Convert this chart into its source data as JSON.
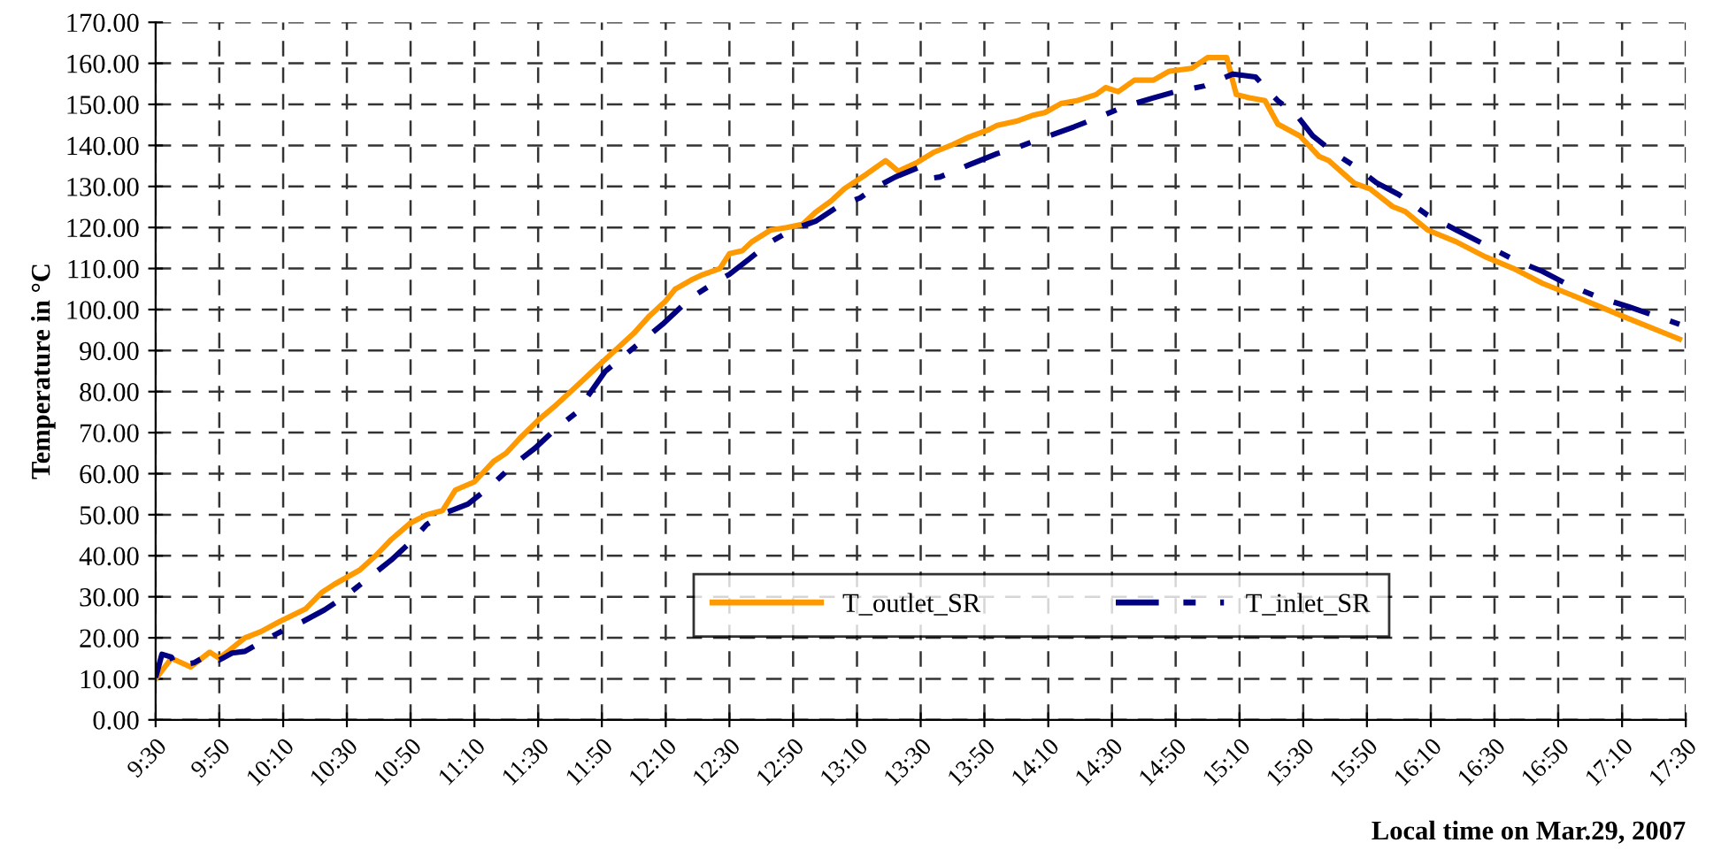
{
  "chart_data": {
    "type": "line",
    "xlabel": "Local time on Mar.29, 2007",
    "ylabel": "Temperature in °C",
    "xlim": [
      9.5,
      17.5
    ],
    "ylim": [
      0,
      170
    ],
    "xticks": [
      {
        "value": 9.5,
        "label": "9:30"
      },
      {
        "value": 9.833,
        "label": "9:50"
      },
      {
        "value": 10.167,
        "label": "10:10"
      },
      {
        "value": 10.5,
        "label": "10:30"
      },
      {
        "value": 10.833,
        "label": "10:50"
      },
      {
        "value": 11.167,
        "label": "11:10"
      },
      {
        "value": 11.5,
        "label": "11:30"
      },
      {
        "value": 11.833,
        "label": "11:50"
      },
      {
        "value": 12.167,
        "label": "12:10"
      },
      {
        "value": 12.5,
        "label": "12:30"
      },
      {
        "value": 12.833,
        "label": "12:50"
      },
      {
        "value": 13.167,
        "label": "13:10"
      },
      {
        "value": 13.5,
        "label": "13:30"
      },
      {
        "value": 13.833,
        "label": "13:50"
      },
      {
        "value": 14.167,
        "label": "14:10"
      },
      {
        "value": 14.5,
        "label": "14:30"
      },
      {
        "value": 14.833,
        "label": "14:50"
      },
      {
        "value": 15.167,
        "label": "15:10"
      },
      {
        "value": 15.5,
        "label": "15:30"
      },
      {
        "value": 15.833,
        "label": "15:50"
      },
      {
        "value": 16.167,
        "label": "16:10"
      },
      {
        "value": 16.5,
        "label": "16:30"
      },
      {
        "value": 16.833,
        "label": "16:50"
      },
      {
        "value": 17.167,
        "label": "17:10"
      },
      {
        "value": 17.5,
        "label": "17:30"
      }
    ],
    "yticks": [
      {
        "value": 0,
        "label": "0.00"
      },
      {
        "value": 10,
        "label": "10.00"
      },
      {
        "value": 20,
        "label": "20.00"
      },
      {
        "value": 30,
        "label": "30.00"
      },
      {
        "value": 40,
        "label": "40.00"
      },
      {
        "value": 50,
        "label": "50.00"
      },
      {
        "value": 60,
        "label": "60.00"
      },
      {
        "value": 70,
        "label": "70.00"
      },
      {
        "value": 80,
        "label": "80.00"
      },
      {
        "value": 90,
        "label": "90.00"
      },
      {
        "value": 100,
        "label": "100.00"
      },
      {
        "value": 110,
        "label": "110.00"
      },
      {
        "value": 120,
        "label": "120.00"
      },
      {
        "value": 130,
        "label": "130.00"
      },
      {
        "value": 140,
        "label": "140.00"
      },
      {
        "value": 150,
        "label": "150.00"
      },
      {
        "value": 160,
        "label": "160.00"
      },
      {
        "value": 170,
        "label": "170.00"
      }
    ],
    "grid": true,
    "legend": "bottom right",
    "series": [
      {
        "name": "T_outlet_SR",
        "color": "#ff9900",
        "line_style": "solid",
        "x": [
          9.5,
          9.583,
          9.683,
          9.783,
          9.833,
          9.967,
          10.05,
          10.15,
          10.283,
          10.367,
          10.433,
          10.567,
          10.65,
          10.733,
          10.833,
          10.917,
          11.0,
          11.067,
          11.167,
          11.267,
          11.333,
          11.4,
          11.5,
          11.583,
          11.7,
          11.817,
          11.883,
          12.0,
          12.083,
          12.167,
          12.217,
          12.3,
          12.35,
          12.45,
          12.5,
          12.567,
          12.617,
          12.717,
          12.8,
          12.883,
          12.95,
          13.033,
          13.1,
          13.217,
          13.317,
          13.383,
          13.483,
          13.567,
          13.667,
          13.75,
          13.85,
          13.9,
          14.0,
          14.083,
          14.15,
          14.233,
          14.317,
          14.417,
          14.467,
          14.533,
          14.617,
          14.717,
          14.8,
          14.917,
          15.0,
          15.1,
          15.15,
          15.217,
          15.3,
          15.367,
          15.483,
          15.583,
          15.633,
          15.767,
          15.85,
          15.967,
          16.033,
          16.15,
          16.3,
          16.45,
          16.6,
          16.75,
          16.9,
          17.05,
          17.2,
          17.467
        ],
        "values": [
          10,
          15,
          12.9,
          16.5,
          15,
          20,
          21.5,
          24,
          27,
          31,
          33,
          36.5,
          40,
          44,
          48,
          50,
          51,
          56,
          58,
          63,
          65,
          68.4,
          73,
          76.3,
          81.3,
          86.4,
          89.2,
          94.2,
          98.5,
          102.1,
          105,
          107.2,
          108.3,
          110,
          113.6,
          114.3,
          116.5,
          119.4,
          120,
          120.8,
          123.7,
          126.5,
          129.4,
          133,
          136.3,
          133.7,
          135.9,
          138.3,
          140.2,
          142,
          143.7,
          144.9,
          145.9,
          147.3,
          148,
          150.2,
          150.9,
          152.4,
          154.1,
          153.1,
          155.9,
          155.9,
          158.1,
          158.8,
          161.4,
          161.4,
          152.4,
          151.6,
          150.9,
          145.2,
          142.3,
          137.3,
          136.3,
          130.8,
          129.4,
          125.1,
          123.9,
          119.4,
          116.5,
          112.9,
          110,
          106.4,
          103.6,
          100.7,
          97.8,
          92.8
        ]
      },
      {
        "name": "T_inlet_SR",
        "color": "#000080",
        "line_style": "dashed",
        "x": [
          9.5,
          9.533,
          9.583,
          9.6,
          9.7,
          9.783,
          9.833,
          9.9,
          9.967,
          10.05,
          10.167,
          10.267,
          10.383,
          10.5,
          10.617,
          10.733,
          10.833,
          10.917,
          11.017,
          11.133,
          11.25,
          11.367,
          11.483,
          11.583,
          11.7,
          11.85,
          12.0,
          12.15,
          12.3,
          12.417,
          12.5,
          12.6,
          12.717,
          12.833,
          12.95,
          13.067,
          13.183,
          13.25,
          13.367,
          13.483,
          13.533,
          13.6,
          13.75,
          13.9,
          14.0,
          14.15,
          14.3,
          14.417,
          14.567,
          14.717,
          14.833,
          14.983,
          15.133,
          15.25,
          15.367,
          15.467,
          15.55,
          15.667,
          15.783,
          15.883,
          16.0,
          16.15,
          16.3,
          16.45,
          16.6,
          16.75,
          16.9,
          17.05,
          17.2,
          17.467
        ],
        "values": [
          10.3,
          16,
          15.3,
          13.2,
          13.9,
          16,
          14.6,
          16.3,
          16.7,
          18.9,
          21.8,
          23.9,
          26.8,
          30.4,
          34.7,
          39,
          43.3,
          47.6,
          50.5,
          52.6,
          56.9,
          62,
          66.2,
          70.5,
          74.9,
          84.9,
          90.7,
          96.4,
          102.9,
          106.4,
          108.6,
          112.2,
          116.5,
          119.6,
          121.5,
          125.1,
          127.2,
          129.4,
          132.3,
          134.5,
          131.9,
          132.3,
          135.2,
          138,
          139.4,
          142,
          144.5,
          146.6,
          149.5,
          151.6,
          153.1,
          154.5,
          157.4,
          156.7,
          150.9,
          147.3,
          142.3,
          138,
          134.5,
          130.9,
          128,
          123,
          119.4,
          115.8,
          112.2,
          109.3,
          105.7,
          102.9,
          100.7,
          96.4
        ]
      }
    ]
  }
}
